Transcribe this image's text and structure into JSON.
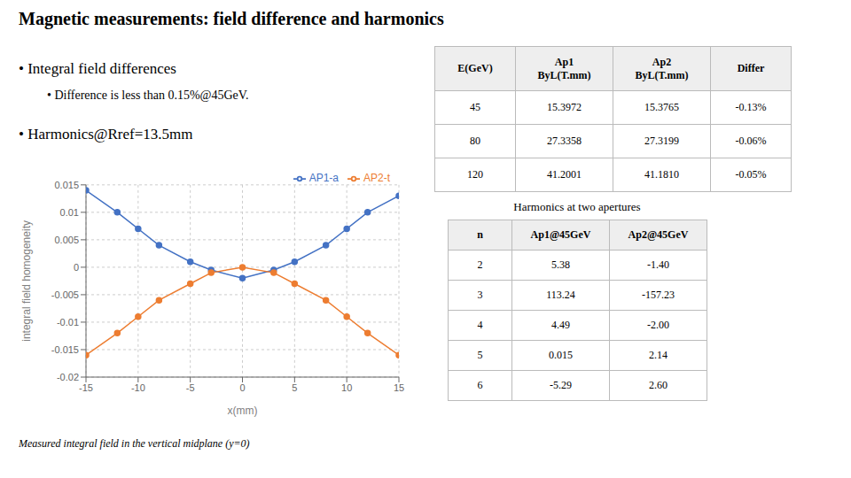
{
  "chart_data": {
    "type": "line",
    "title": "Magnetic measurements: field difference and harmonics",
    "annotations": [
      "• Integral field differences",
      "• Difference is less than 0.15%@45GeV.",
      "• Harmonics@Rref=13.5mm"
    ],
    "caption": "Measured integral field in the vertical midplane (y=0)",
    "x_label": "x(mm)",
    "y_label": "integral field homogeneity",
    "x": [
      -15,
      -12,
      -10,
      -8,
      -5,
      -3,
      0,
      3,
      5,
      8,
      10,
      12,
      15
    ],
    "series": [
      {
        "name": "AP1-a",
        "color": "#4472C4",
        "marker": "circle",
        "values": [
          0.014,
          0.01,
          0.007,
          0.004,
          0.001,
          -0.0005,
          -0.002,
          -0.0005,
          0.001,
          0.004,
          0.007,
          0.01,
          0.013
        ]
      },
      {
        "name": "AP2-t",
        "color": "#ED7D31",
        "marker": "circle",
        "values": [
          -0.016,
          -0.012,
          -0.009,
          -0.006,
          -0.003,
          -0.001,
          0.0,
          -0.001,
          -0.003,
          -0.006,
          -0.009,
          -0.012,
          -0.016
        ]
      }
    ],
    "xlim": [
      -15,
      15
    ],
    "xticks": [
      -15,
      -10,
      -5,
      0,
      5,
      10,
      15
    ],
    "ylim": [
      -0.02,
      0.015
    ],
    "yticks": [
      -0.02,
      -0.015,
      -0.01,
      -0.005,
      0,
      0.005,
      0.01,
      0.015
    ],
    "grid": true,
    "legend": "upper right",
    "tables": [
      {
        "columns": [
          "E(GeV)",
          "Ap1\nByL(T.mm)",
          "Ap2\nByL(T.mm)",
          "Differ"
        ],
        "rows": [
          [
            "45",
            "15.3972",
            "15.3765",
            "-0.13%"
          ],
          [
            "80",
            "27.3358",
            "27.3199",
            "-0.06%"
          ],
          [
            "120",
            "41.2001",
            "41.1810",
            "-0.05%"
          ]
        ]
      },
      {
        "title": "Harmonics at two apertures",
        "columns": [
          "n",
          "Ap1@45GeV",
          "Ap2@45GeV"
        ],
        "rows": [
          [
            "2",
            "5.38",
            "-1.40"
          ],
          [
            "3",
            "113.24",
            "-157.23"
          ],
          [
            "4",
            "4.49",
            "-2.00"
          ],
          [
            "5",
            "0.015",
            "2.14"
          ],
          [
            "6",
            "-5.29",
            "2.60"
          ]
        ]
      }
    ]
  }
}
